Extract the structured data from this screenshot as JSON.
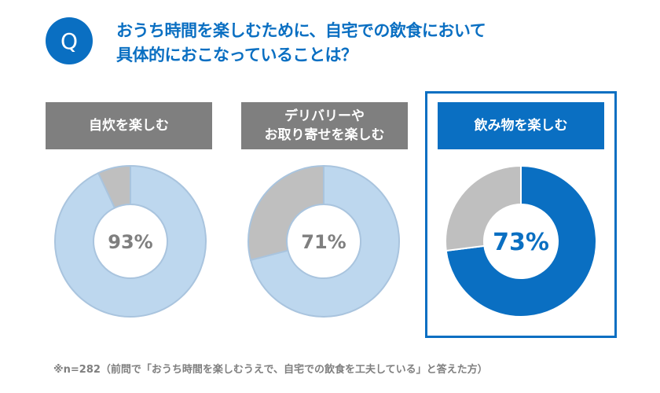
{
  "question": {
    "badge": "Q",
    "line1": "おうち時間を楽しむために、自宅での飲食において",
    "line2": "具体的におこなっていることは？"
  },
  "chart_data": [
    {
      "type": "pie",
      "variant": "donut",
      "title_lines": [
        "自炊を楽しむ"
      ],
      "value": 93,
      "label": "93%",
      "highlight": false
    },
    {
      "type": "pie",
      "variant": "donut",
      "title_lines": [
        "デリバリーや",
        "お取り寄せを楽しむ"
      ],
      "value": 71,
      "label": "71%",
      "highlight": false
    },
    {
      "type": "pie",
      "variant": "donut",
      "title_lines": [
        "飲み物を楽しむ"
      ],
      "value": 73,
      "label": "73%",
      "highlight": true
    }
  ],
  "colors": {
    "accent": "#0a6fc2",
    "value_light": "#bdd7ee",
    "remainder": "#bfbfbf",
    "header_gray": "#7f7f7f",
    "label_gray": "#7f7f7f"
  },
  "footnote": "※n=282（前問で「おうち時間を楽しむうえで、自宅での飲食を工夫している」と答えた方）"
}
